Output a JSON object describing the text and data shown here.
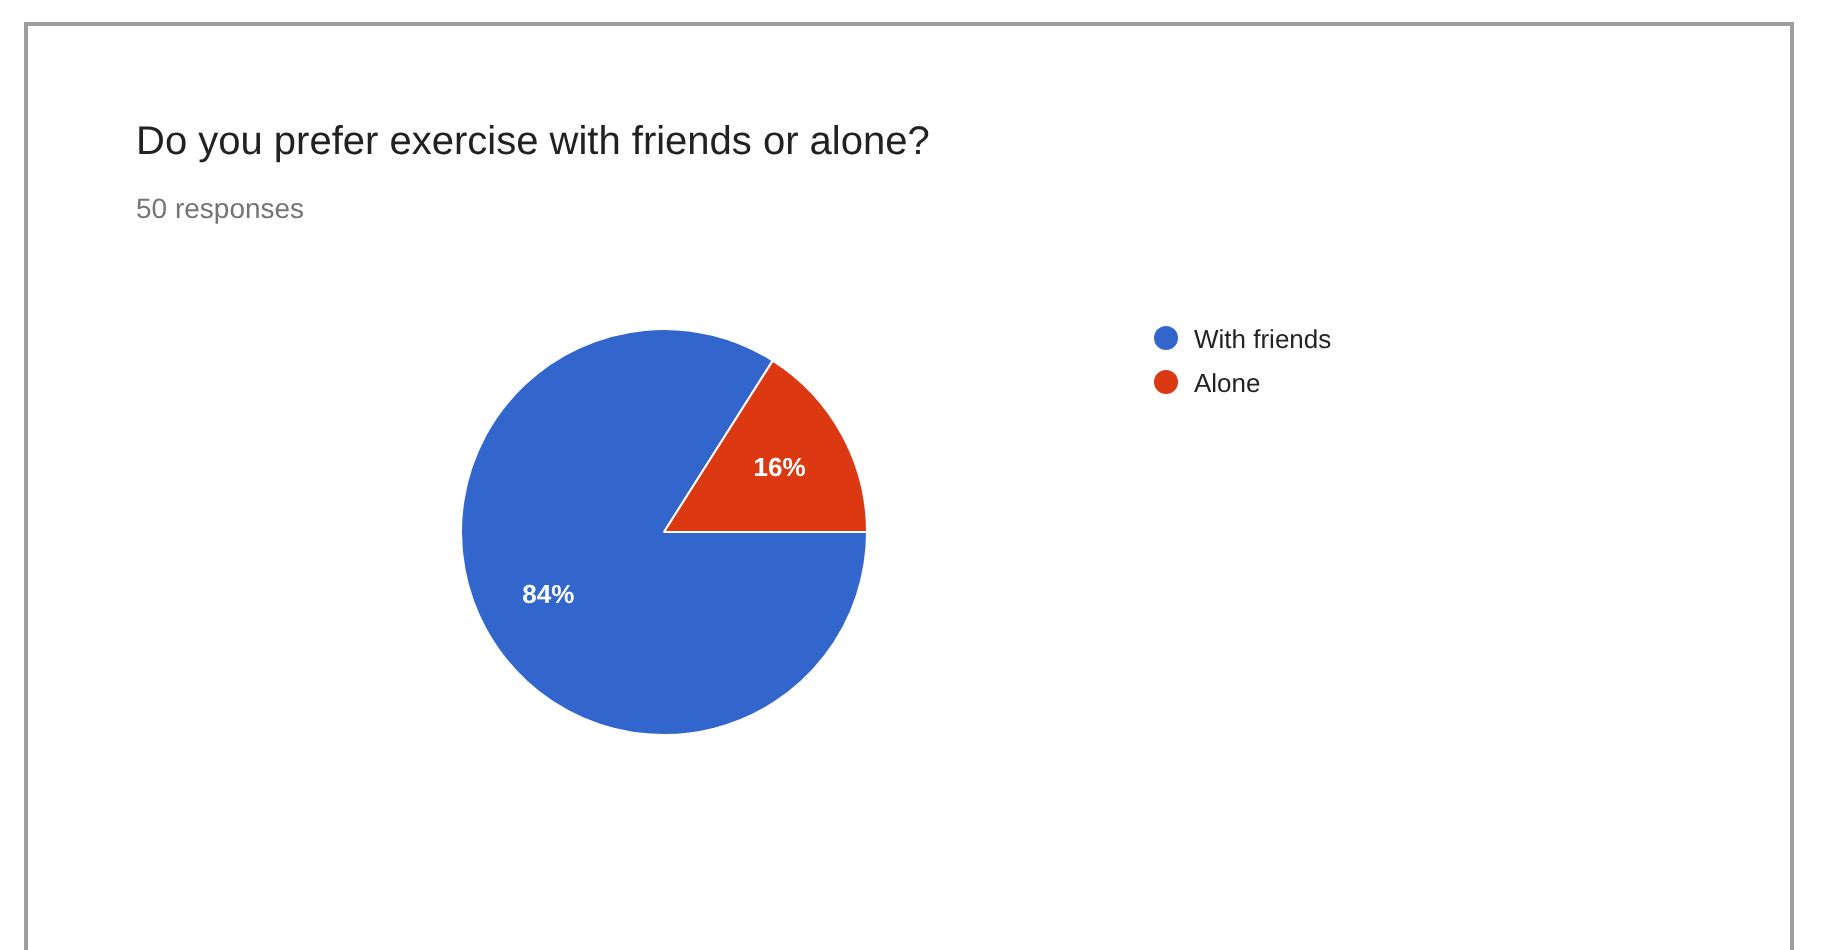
{
  "chart_data": {
    "type": "pie",
    "title": "Do you prefer exercise with friends or alone?",
    "subtitle": "50 responses",
    "categories": [
      "With friends",
      "Alone"
    ],
    "values": [
      84,
      16
    ],
    "colors": [
      "#3366cc",
      "#dc3912"
    ],
    "value_labels": [
      "84%",
      "16%"
    ],
    "legend": "top right"
  }
}
